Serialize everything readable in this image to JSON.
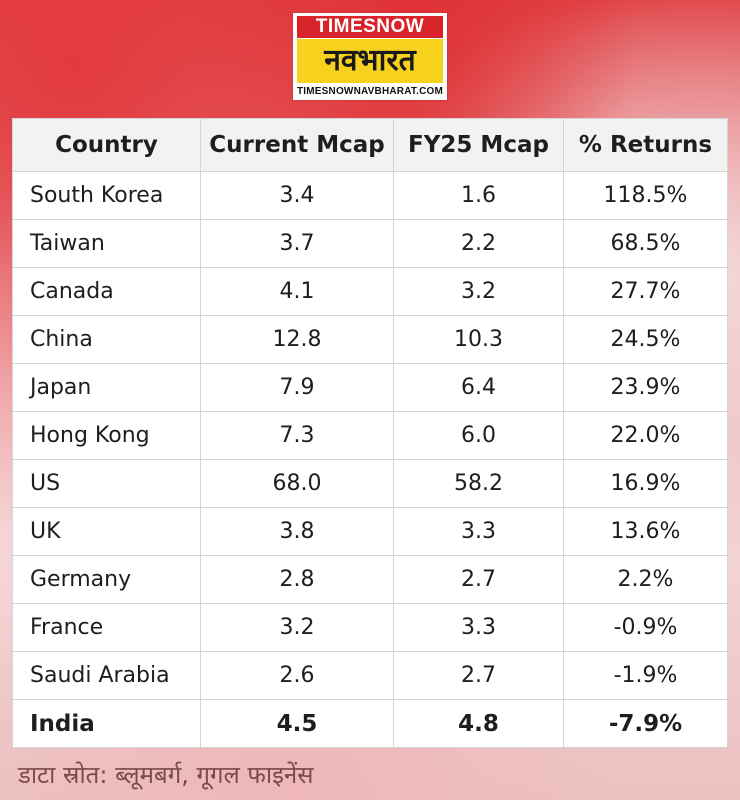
{
  "logo": {
    "top": "TIMESNOW",
    "brand": "नवभारत",
    "site": "TIMESNOWNAVBHARAT.COM"
  },
  "table": {
    "headers": [
      "Country",
      "Current Mcap",
      "FY25 Mcap",
      "% Returns"
    ],
    "rows": [
      {
        "country": "South Korea",
        "current": "3.4",
        "fy25": "1.6",
        "returns": "118.5%",
        "sign": "pos"
      },
      {
        "country": "Taiwan",
        "current": "3.7",
        "fy25": "2.2",
        "returns": "68.5%",
        "sign": "pos"
      },
      {
        "country": "Canada",
        "current": "4.1",
        "fy25": "3.2",
        "returns": "27.7%",
        "sign": "pos"
      },
      {
        "country": "China",
        "current": "12.8",
        "fy25": "10.3",
        "returns": "24.5%",
        "sign": "pos"
      },
      {
        "country": "Japan",
        "current": "7.9",
        "fy25": "6.4",
        "returns": "23.9%",
        "sign": "pos"
      },
      {
        "country": "Hong Kong",
        "current": "7.3",
        "fy25": "6.0",
        "returns": "22.0%",
        "sign": "pos"
      },
      {
        "country": "US",
        "current": "68.0",
        "fy25": "58.2",
        "returns": "16.9%",
        "sign": "pos"
      },
      {
        "country": "UK",
        "current": "3.8",
        "fy25": "3.3",
        "returns": "13.6%",
        "sign": "pos"
      },
      {
        "country": "Germany",
        "current": "2.8",
        "fy25": "2.7",
        "returns": "2.2%",
        "sign": "pos"
      },
      {
        "country": "France",
        "current": "3.2",
        "fy25": "3.3",
        "returns": "-0.9%",
        "sign": "neg"
      },
      {
        "country": "Saudi Arabia",
        "current": "2.6",
        "fy25": "2.7",
        "returns": "-1.9%",
        "sign": "neg"
      },
      {
        "country": "India",
        "current": "4.5",
        "fy25": "4.8",
        "returns": "-7.9%",
        "sign": "neg",
        "bold": true
      }
    ]
  },
  "footer": {
    "source": "डाटा स्रोत: ब्लूमबर्ग, गूगल फाइनेंस"
  }
}
